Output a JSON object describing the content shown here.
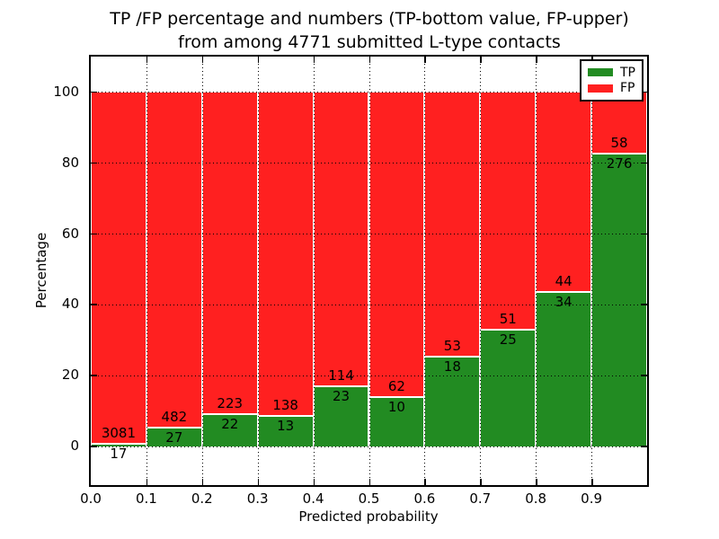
{
  "figure": {
    "title_line1": "TP /FP percentage and numbers (TP-bottom value, FP-upper)",
    "title_line2": "from among 4771 submitted L-type contacts"
  },
  "chart_data": {
    "type": "bar",
    "stacked": true,
    "normalized_to_percent": true,
    "title": "TP /FP percentage and numbers (TP-bottom value, FP-upper)\nfrom among 4771 submitted L-type contacts",
    "xlabel": "Predicted probability",
    "ylabel": "Percentage",
    "categories": [
      "0.0-0.1",
      "0.1-0.2",
      "0.2-0.3",
      "0.3-0.4",
      "0.4-0.5",
      "0.5-0.6",
      "0.6-0.7",
      "0.7-0.8",
      "0.8-0.9",
      "0.9-1.0"
    ],
    "bin_width": 0.1,
    "series": [
      {
        "name": "TP",
        "color": "#228B22",
        "position": "bottom",
        "values": [
          17,
          27,
          22,
          13,
          23,
          10,
          18,
          25,
          34,
          276
        ]
      },
      {
        "name": "FP",
        "color": "#FF2020",
        "position": "top",
        "values": [
          3081,
          482,
          223,
          138,
          114,
          62,
          53,
          51,
          44,
          58
        ]
      }
    ],
    "x_ticks": [
      "0.0",
      "0.1",
      "0.2",
      "0.3",
      "0.4",
      "0.5",
      "0.6",
      "0.7",
      "0.8",
      "0.9"
    ],
    "y_ticks": [
      0,
      20,
      40,
      60,
      80,
      100
    ],
    "xlim": [
      0.0,
      1.0
    ],
    "ylim": [
      -11,
      110
    ],
    "grid": true,
    "grid_style": "dotted",
    "legend_position": "upper right",
    "colors": {
      "tp_green": "#228B22",
      "fp_red": "#FF2020",
      "axes": "#000000",
      "background": "#ffffff"
    }
  }
}
